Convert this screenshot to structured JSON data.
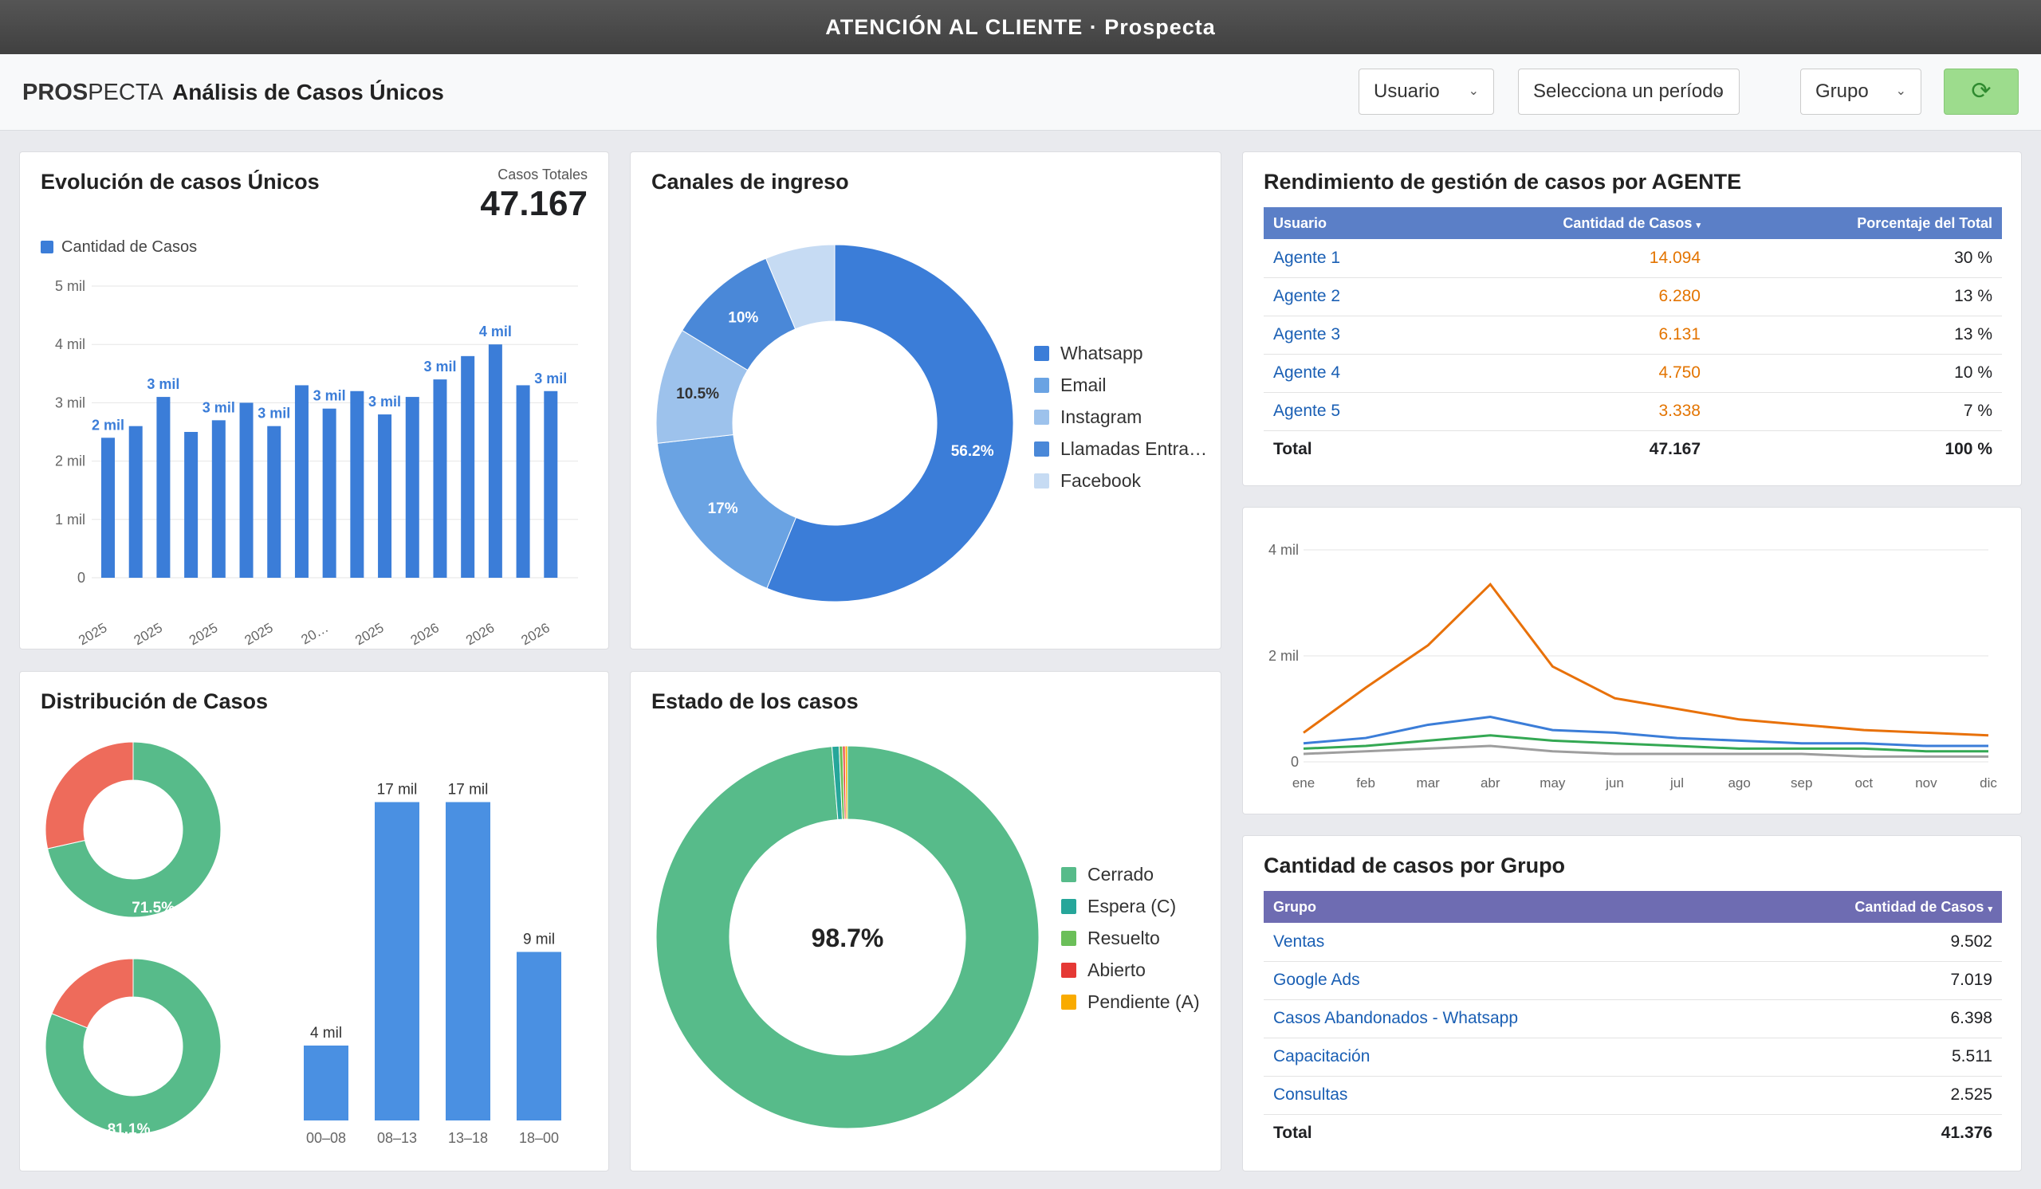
{
  "window_title": "ATENCIÓN AL CLIENTE · Prospecta",
  "header": {
    "logo_bold": "PROS",
    "logo_rest": "PECTA",
    "page_title": "Análisis de Casos Únicos",
    "filters": {
      "usuario": "Usuario",
      "periodo": "Selecciona un período",
      "grupo": "Grupo"
    },
    "refresh_icon": "refresh-icon"
  },
  "colors": {
    "primary_blue": "#3b7dd8",
    "green": "#57bb8a",
    "orange": "#e8710a",
    "red": "#ee6b5b",
    "table_header_blue": "#5b7fc7",
    "table_header_purple": "#6e6cb2"
  },
  "evolucion": {
    "title": "Evolución de casos Únicos",
    "total_label": "Casos Totales",
    "total_value": "47.167",
    "legend": "Cantidad de Casos",
    "y_ticks": [
      "5 mil",
      "4 mil",
      "3 mil",
      "2 mil",
      "1 mil",
      "0"
    ],
    "x_ticks": [
      "2025",
      "2025",
      "2025",
      "2025",
      "20…",
      "2025",
      "2026",
      "2026",
      "2026"
    ]
  },
  "canales": {
    "title": "Canales de ingreso",
    "legend": [
      "Whatsapp",
      "Email",
      "Instagram",
      "Llamadas Entra…",
      "Facebook"
    ],
    "slice_labels": [
      "56.2%",
      "17%",
      "10.5%",
      "10%"
    ]
  },
  "rendimiento": {
    "title": "Rendimiento de gestión de casos por AGENTE",
    "headers": [
      "Usuario",
      "Cantidad de Casos",
      "Porcentaje del Total"
    ],
    "sort_icon": "sort-desc-icon",
    "rows": [
      {
        "name": "Agente 1",
        "count": "14.094",
        "pct": "30 %"
      },
      {
        "name": "Agente 2",
        "count": "6.280",
        "pct": "13 %"
      },
      {
        "name": "Agente 3",
        "count": "6.131",
        "pct": "13 %"
      },
      {
        "name": "Agente 4",
        "count": "4.750",
        "pct": "10 %"
      },
      {
        "name": "Agente 5",
        "count": "3.338",
        "pct": "7 %"
      }
    ],
    "total": {
      "label": "Total",
      "count": "47.167",
      "pct": "100 %"
    }
  },
  "distribucion": {
    "title": "Distribución de Casos",
    "donut_labels": [
      "71.5%",
      "81.1%"
    ]
  },
  "estado": {
    "title": "Estado de los casos",
    "center_label": "98.7%",
    "legend": [
      "Cerrado",
      "Espera (C)",
      "Resuelto",
      "Abierto",
      "Pendiente (A)"
    ]
  },
  "grupos": {
    "title": "Cantidad de casos por Grupo",
    "headers": [
      "Grupo",
      "Cantidad de Casos"
    ],
    "sort_icon": "sort-desc-icon",
    "rows": [
      {
        "name": "Ventas",
        "count": "9.502"
      },
      {
        "name": "Google Ads",
        "count": "7.019"
      },
      {
        "name": "Casos Abandonados - Whatsapp",
        "count": "6.398"
      },
      {
        "name": "Capacitación",
        "count": "5.511"
      },
      {
        "name": "Consultas",
        "count": "2.525"
      }
    ],
    "total": {
      "label": "Total",
      "count": "41.376"
    }
  },
  "chart_data": [
    {
      "type": "bar",
      "title": "Evolución de casos Únicos",
      "ylim": [
        0,
        5000
      ],
      "grid": true,
      "legend_position": "top-left",
      "series": [
        {
          "name": "Cantidad de Casos",
          "color": "#3b7dd8",
          "values": [
            2400,
            2600,
            3100,
            2500,
            2700,
            3000,
            2600,
            3300,
            2900,
            3200,
            2800,
            3100,
            3400,
            3800,
            4000,
            3300,
            3200
          ]
        }
      ],
      "data_labels": [
        "2 mil",
        "",
        "3 mil",
        "",
        "3 mil",
        "",
        "3 mil",
        "",
        "3 mil",
        "",
        "3 mil",
        "",
        "3 mil",
        "",
        "4 mil",
        "",
        "3 mil"
      ]
    },
    {
      "type": "pie",
      "title": "Canales de ingreso",
      "legend_position": "right",
      "slices": [
        {
          "label": "Whatsapp",
          "value": 56.2,
          "color": "#3b7dd8"
        },
        {
          "label": "Email",
          "value": 17,
          "color": "#6aa3e3"
        },
        {
          "label": "Instagram",
          "value": 10.5,
          "color": "#9dc2ec"
        },
        {
          "label": "Llamadas Entra…",
          "value": 10,
          "color": "#4a88d8"
        },
        {
          "label": "Facebook",
          "value": 6.3,
          "color": "#c6dbf3"
        }
      ]
    },
    {
      "type": "line",
      "y_ticks": [
        "4 mil",
        "2 mil",
        "0"
      ],
      "ylim": [
        0,
        4000
      ],
      "x": [
        "ene",
        "feb",
        "mar",
        "abr",
        "may",
        "jun",
        "jul",
        "ago",
        "sep",
        "oct",
        "nov",
        "dic"
      ],
      "series": [
        {
          "color": "#e8710a",
          "values": [
            550,
            1400,
            2200,
            3350,
            1800,
            1200,
            1000,
            800,
            700,
            600,
            550,
            500
          ]
        },
        {
          "color": "#3b7dd8",
          "values": [
            350,
            450,
            700,
            850,
            600,
            550,
            450,
            400,
            350,
            350,
            300,
            300
          ]
        },
        {
          "color": "#34a853",
          "values": [
            250,
            300,
            400,
            500,
            400,
            350,
            300,
            250,
            250,
            250,
            200,
            200
          ]
        },
        {
          "color": "#9e9e9e",
          "values": [
            150,
            200,
            250,
            300,
            200,
            150,
            150,
            150,
            150,
            100,
            100,
            100
          ]
        }
      ]
    },
    {
      "type": "pie",
      "title": "Distribución de Casos",
      "slices": [
        {
          "value": 71.5,
          "color": "#57bb8a"
        },
        {
          "value": 28.5,
          "color": "#ee6b5b"
        }
      ]
    },
    {
      "type": "pie",
      "slices": [
        {
          "value": 81.1,
          "color": "#57bb8a"
        },
        {
          "value": 18.9,
          "color": "#ee6b5b"
        }
      ]
    },
    {
      "type": "bar",
      "categories": [
        "00–08",
        "08–13",
        "13–18",
        "18–00"
      ],
      "values": [
        4000,
        17000,
        17000,
        9000
      ],
      "data_labels": [
        "4 mil",
        "17 mil",
        "17 mil",
        "9 mil"
      ],
      "ylim": [
        0,
        18000
      ]
    },
    {
      "type": "pie",
      "title": "Estado de los casos",
      "legend_position": "right",
      "slices": [
        {
          "label": "Cerrado",
          "value": 98.7,
          "color": "#57bb8a"
        },
        {
          "label": "Espera (C)",
          "value": 0.6,
          "color": "#26a69a"
        },
        {
          "label": "Resuelto",
          "value": 0.3,
          "color": "#6bbf59"
        },
        {
          "label": "Abierto",
          "value": 0.2,
          "color": "#e53935"
        },
        {
          "label": "Pendiente (A)",
          "value": 0.2,
          "color": "#f9ab00"
        }
      ]
    }
  ]
}
